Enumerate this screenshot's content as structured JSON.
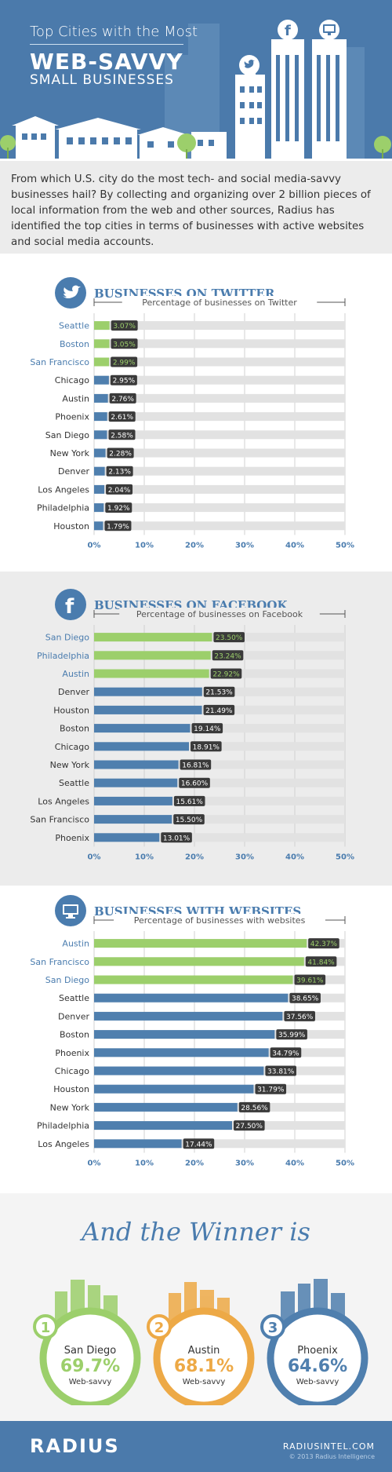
{
  "header": {
    "subtitle": "Top Cities with the Most",
    "title_line1": "WEB-SAVVY",
    "title_line2": "SMALL BUSINESSES"
  },
  "intro": "From which U.S. city do the most tech- and social media-savvy businesses hail? By collecting and organizing over 2 billion pieces of local information from the web and other sources, Radius has identified the top cities in terms of businesses with active websites and social media accounts.",
  "colors": {
    "brand_blue": "#4b7aab",
    "bar_blue": "#4f7fae",
    "top_green": "#9ccf6b",
    "track_gray": "#e2e2e2",
    "label_dark": "#3a3a3a",
    "rank1_green": "#9ccf6b",
    "rank2_orange": "#eda946",
    "rank3_blue": "#4f7fae"
  },
  "chart_data": [
    {
      "type": "bar",
      "orientation": "horizontal",
      "title": "BUSINESSES ON TWITTER",
      "icon": "twitter-icon",
      "xlabel": "Percentage of businesses on Twitter",
      "xlim": [
        0,
        50
      ],
      "xticks": [
        "0%",
        "10%",
        "20%",
        "30%",
        "40%",
        "50%"
      ],
      "highlight_top": 3,
      "categories": [
        "Seattle",
        "Boston",
        "San Francisco",
        "Chicago",
        "Austin",
        "Phoenix",
        "San Diego",
        "New York",
        "Denver",
        "Los Angeles",
        "Philadelphia",
        "Houston"
      ],
      "values": [
        3.07,
        3.05,
        2.99,
        2.95,
        2.76,
        2.61,
        2.58,
        2.28,
        2.13,
        2.04,
        1.92,
        1.79
      ],
      "labels": [
        "3.07%",
        "3.05%",
        "2.99%",
        "2.95%",
        "2.76%",
        "2.61%",
        "2.58%",
        "2.28%",
        "2.13%",
        "2.04%",
        "1.92%",
        "1.79%"
      ]
    },
    {
      "type": "bar",
      "orientation": "horizontal",
      "title": "BUSINESSES ON FACEBOOK",
      "icon": "facebook-icon",
      "xlabel": "Percentage of businesses on Facebook",
      "xlim": [
        0,
        50
      ],
      "xticks": [
        "0%",
        "10%",
        "20%",
        "30%",
        "40%",
        "50%"
      ],
      "highlight_top": 3,
      "categories": [
        "San Diego",
        "Philadelphia",
        "Austin",
        "Denver",
        "Houston",
        "Boston",
        "Chicago",
        "New York",
        "Seattle",
        "Los Angeles",
        "San Francisco",
        "Phoenix"
      ],
      "values": [
        23.5,
        23.24,
        22.92,
        21.53,
        21.49,
        19.14,
        18.91,
        16.81,
        16.6,
        15.61,
        15.5,
        13.01
      ],
      "labels": [
        "23.50%",
        "23.24%",
        "22.92%",
        "21.53%",
        "21.49%",
        "19.14%",
        "18.91%",
        "16.81%",
        "16.60%",
        "15.61%",
        "15.50%",
        "13.01%"
      ]
    },
    {
      "type": "bar",
      "orientation": "horizontal",
      "title": "BUSINESSES WITH WEBSITES",
      "icon": "monitor-icon",
      "xlabel": "Percentage of businesses with websites",
      "xlim": [
        0,
        50
      ],
      "xticks": [
        "0%",
        "10%",
        "20%",
        "30%",
        "40%",
        "50%"
      ],
      "highlight_top": 3,
      "categories": [
        "Austin",
        "San Francisco",
        "San Diego",
        "Seattle",
        "Denver",
        "Boston",
        "Phoenix",
        "Chicago",
        "Houston",
        "New York",
        "Philadelphia",
        "Los Angeles"
      ],
      "values": [
        42.37,
        41.84,
        39.61,
        38.65,
        37.56,
        35.99,
        34.79,
        33.81,
        31.79,
        28.56,
        27.5,
        17.44
      ],
      "labels": [
        "42.37%",
        "41.84%",
        "39.61%",
        "38.65%",
        "37.56%",
        "35.99%",
        "34.79%",
        "33.81%",
        "31.79%",
        "28.56%",
        "27.50%",
        "17.44%"
      ]
    }
  ],
  "winner": {
    "title": "And the Winner is",
    "places": [
      {
        "rank": "1",
        "city": "San Diego",
        "percent": "69.7%",
        "label": "Web-savvy",
        "value": 69.7
      },
      {
        "rank": "2",
        "city": "Austin",
        "percent": "68.1%",
        "label": "Web-savvy",
        "value": 68.1
      },
      {
        "rank": "3",
        "city": "Phoenix",
        "percent": "64.6%",
        "label": "Web-savvy",
        "value": 64.6
      }
    ]
  },
  "footer": {
    "logo": "RADIUS",
    "site": "RADIUSINTEL.COM",
    "copyright": "© 2013 Radius Intelligence"
  }
}
